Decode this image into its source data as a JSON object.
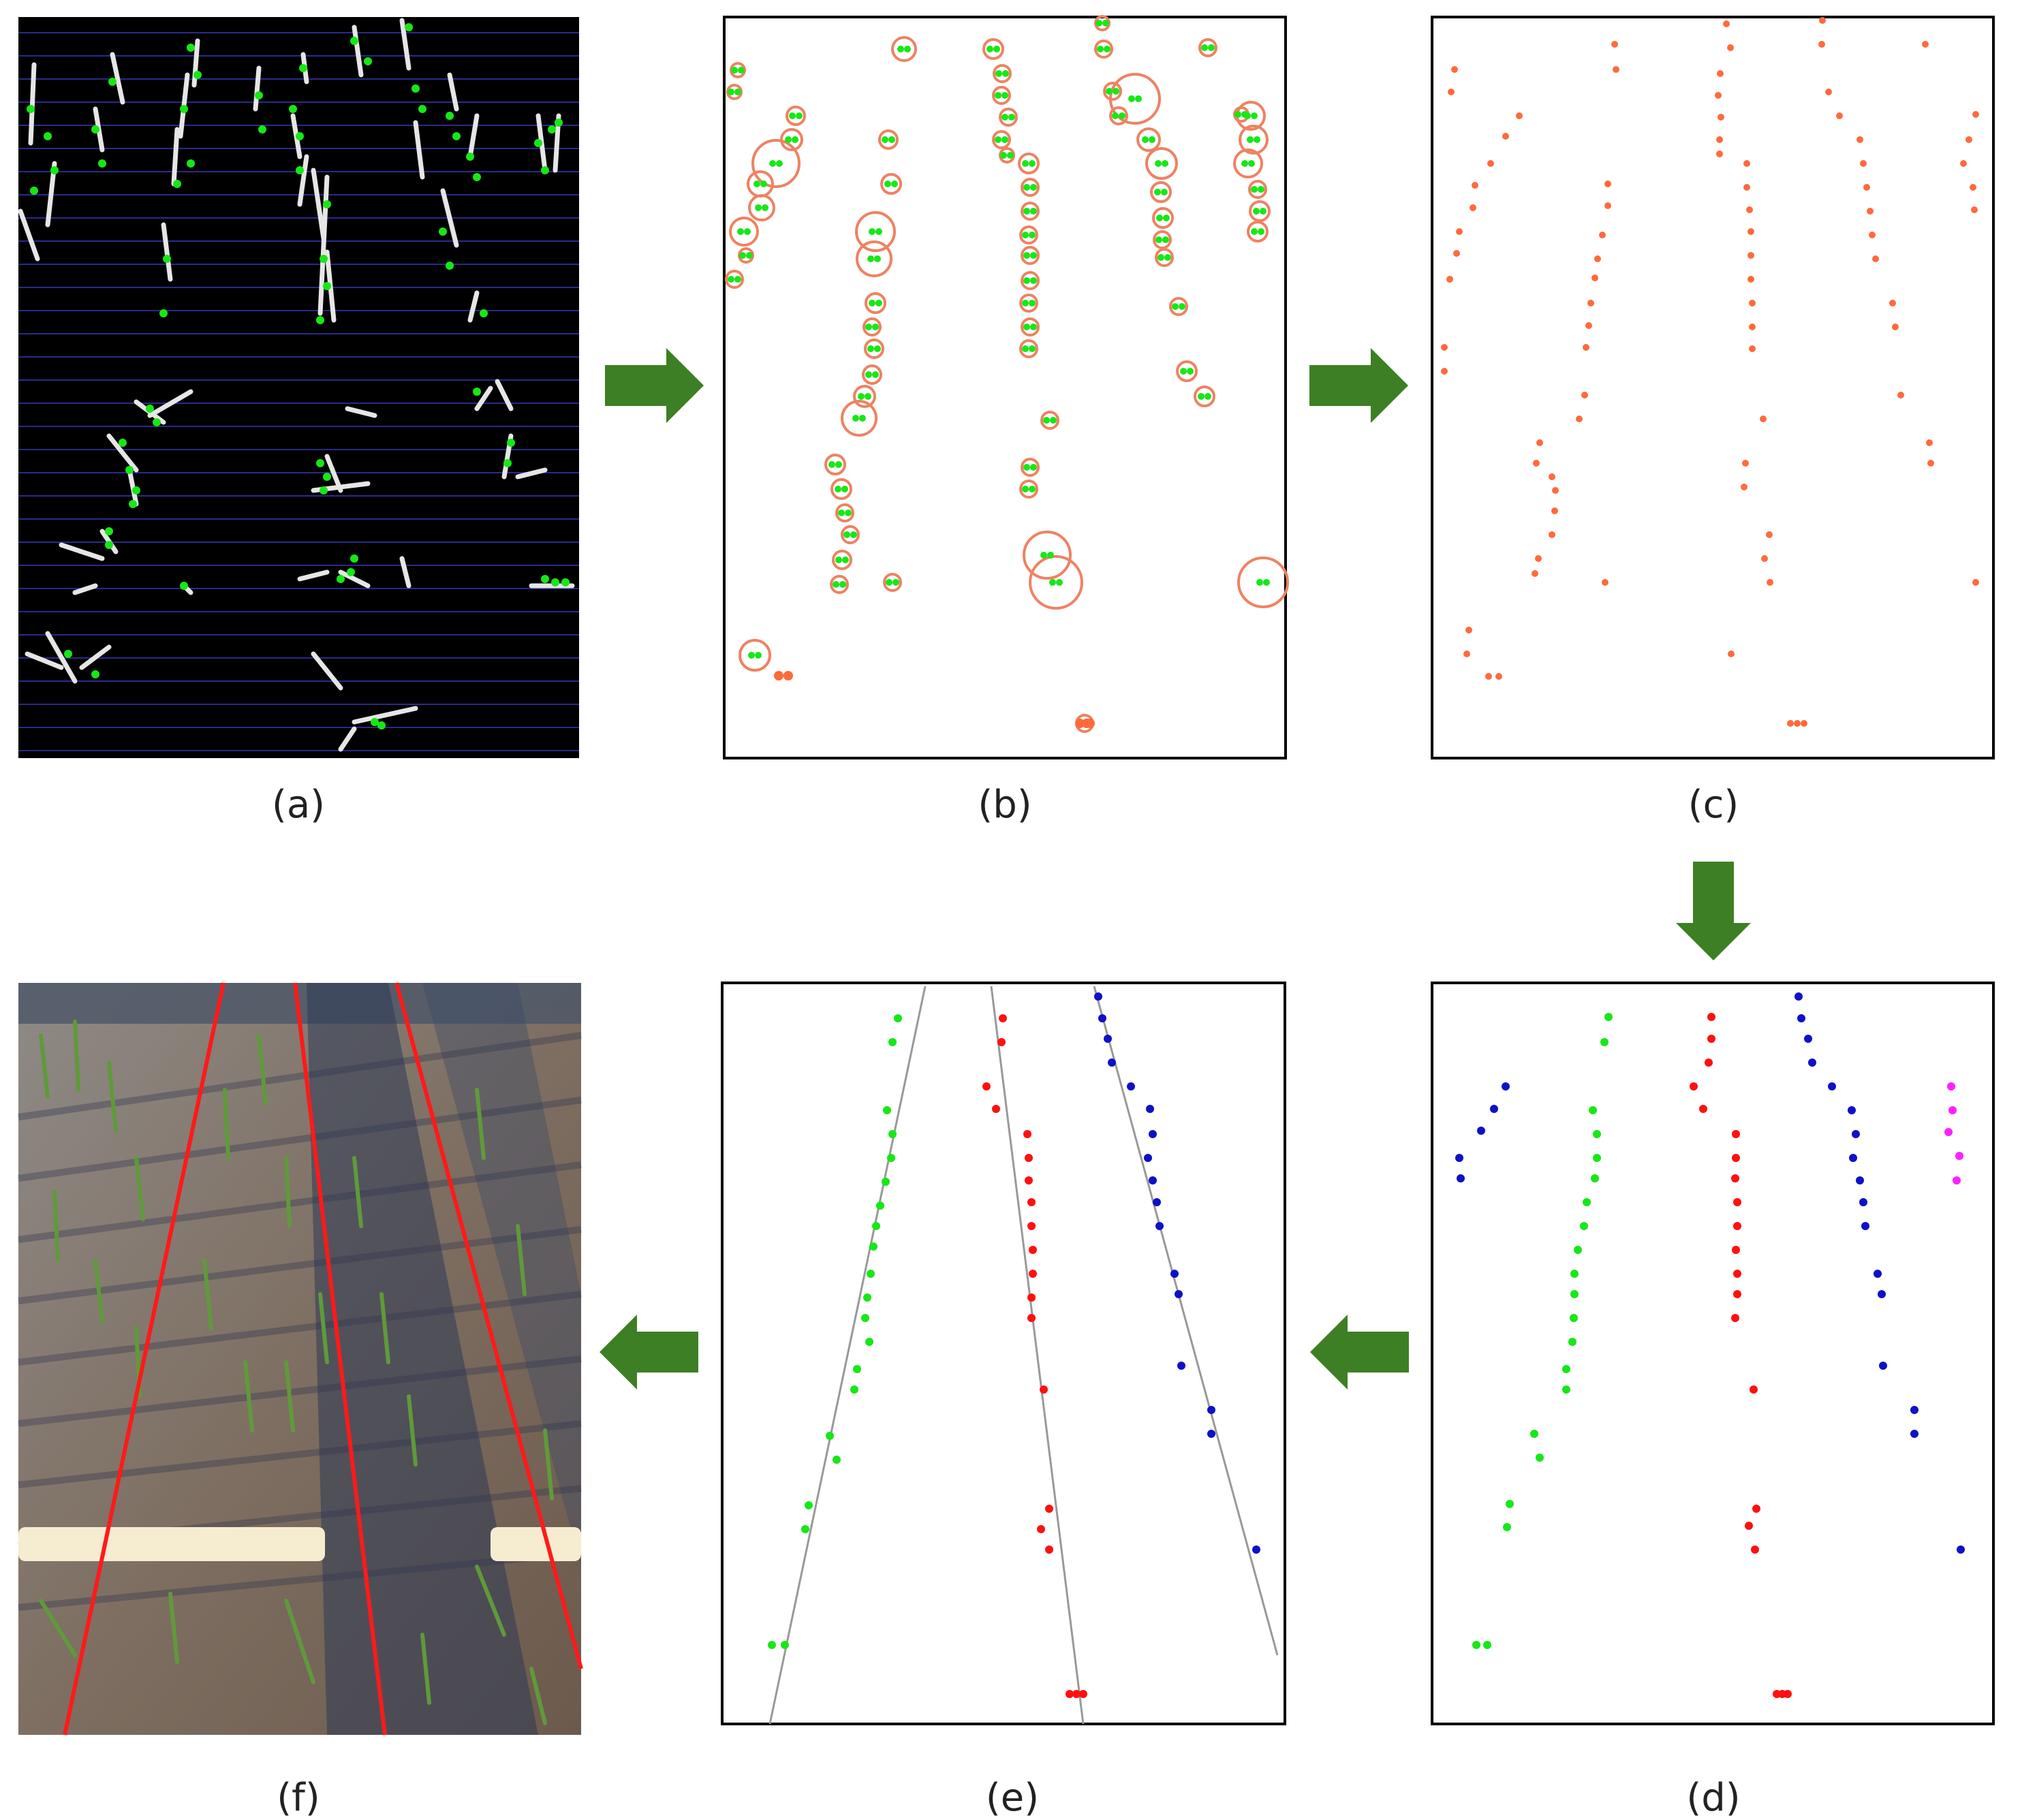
{
  "figure": {
    "panels": [
      {
        "id": "a",
        "label": "(a)",
        "content": "binarized seedling image with horizontal scan strips and green feature points"
      },
      {
        "id": "b",
        "label": "(b)",
        "content": "feature points with clustering circles"
      },
      {
        "id": "c",
        "label": "(c)",
        "content": "clustered center points"
      },
      {
        "id": "d",
        "label": "(d)",
        "content": "points grouped by crop row in different colors"
      },
      {
        "id": "e",
        "label": "(e)",
        "content": "fitted crop row lines through grouped points"
      },
      {
        "id": "f",
        "label": "(f)",
        "content": "detected crop row lines overlaid on the field photo"
      }
    ],
    "flow": [
      "a",
      "b",
      "c",
      "d",
      "e",
      "f"
    ]
  },
  "colors": {
    "arrow": "#3d7f24",
    "feature_point": "#16e816",
    "cluster_circle": "#ee8262",
    "center_point": "#ff6a3d",
    "row_green": "#16e816",
    "row_red": "#ff1010",
    "row_blue": "#1010c8",
    "row_magenta": "#ff20ff",
    "fit_line": "#999999",
    "detected_line": "#ff1a1a"
  }
}
